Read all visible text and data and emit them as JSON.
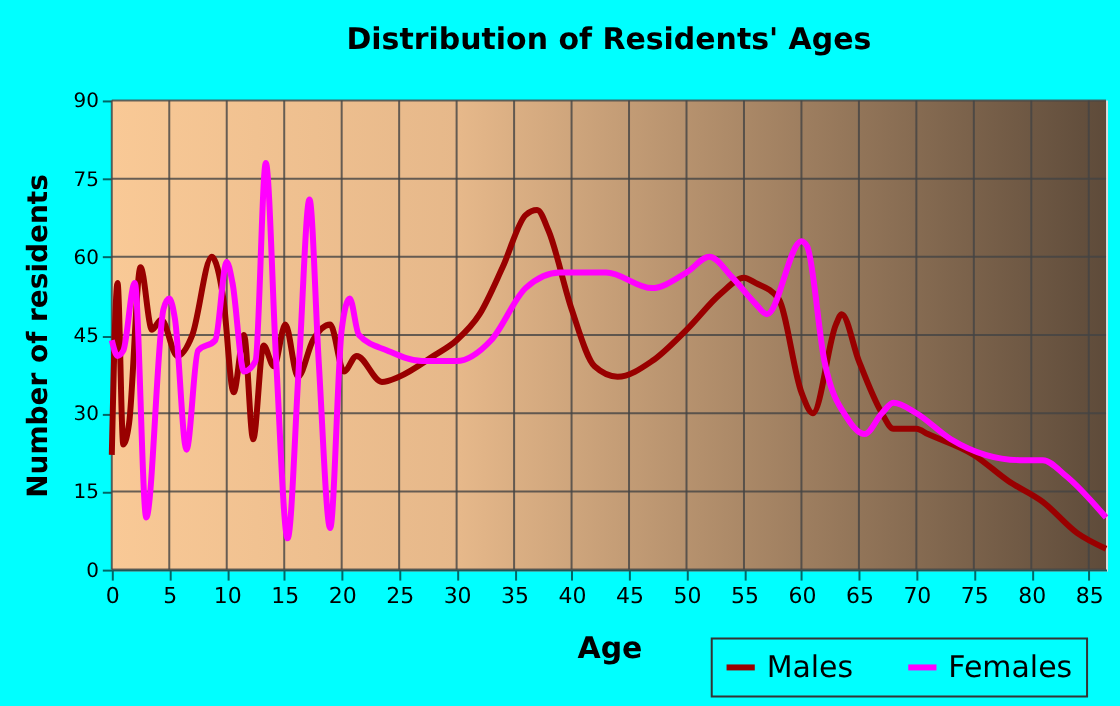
{
  "chart_data": {
    "type": "line",
    "title": "Distribution of Residents' Ages",
    "xlabel": "Age",
    "ylabel": "Number of residents",
    "xlim": [
      0,
      86.5
    ],
    "xticks": [
      0,
      5,
      10,
      15,
      20,
      25,
      30,
      35,
      40,
      45,
      50,
      55,
      60,
      65,
      70,
      75,
      80,
      85
    ],
    "ylim": [
      0,
      90
    ],
    "yticks": [
      0,
      15,
      30,
      45,
      60,
      75,
      90
    ],
    "grid": true,
    "legend": "bottom right",
    "marker": "none",
    "line_style": "solid",
    "series": [
      {
        "name": "Males",
        "color": "#990000",
        "x": [
          0,
          0.5,
          1,
          1.5,
          2.5,
          3.5,
          4.3,
          5.7,
          7,
          8.7,
          9.7,
          10.6,
          11.5,
          12.3,
          13.2,
          14.1,
          15.1,
          16.2,
          17.5,
          19,
          20.2,
          21.3,
          23.5,
          25,
          28,
          30,
          32,
          34,
          36,
          37,
          38,
          40,
          42,
          44,
          47,
          50,
          53,
          55,
          56,
          58,
          60,
          61,
          63,
          63.5,
          65,
          67,
          68,
          70,
          71,
          75,
          78,
          81,
          84,
          86.5
        ],
        "values": [
          22,
          55,
          24,
          28,
          58,
          46,
          48,
          41,
          45,
          60,
          52,
          34,
          45,
          25,
          43,
          39,
          47,
          37,
          44,
          47,
          38,
          41,
          36,
          37,
          41,
          44,
          49,
          58,
          68,
          69,
          65,
          50,
          39,
          37,
          40,
          46,
          53,
          56,
          55,
          52,
          34,
          30,
          47,
          49,
          40,
          30,
          27,
          27,
          26,
          22,
          17,
          13,
          7,
          4
        ]
      },
      {
        "name": "Females",
        "color": "#ff00ff",
        "x": [
          0,
          0.5,
          1,
          2,
          3,
          4.5,
          5,
          5.5,
          6.5,
          7.5,
          9,
          10,
          10.5,
          11.5,
          12.5,
          13.4,
          14.3,
          15.3,
          16.3,
          17.2,
          18,
          19,
          20,
          20.7,
          21.5,
          24,
          27,
          30,
          33,
          36,
          39,
          43,
          47,
          50,
          52,
          54,
          56,
          57,
          60,
          60.5,
          62,
          64,
          65.5,
          67,
          68,
          70,
          73,
          76,
          79,
          81,
          83,
          86.5
        ],
        "values": [
          44,
          41,
          42,
          55,
          10,
          50,
          52,
          48,
          23,
          42,
          44,
          59,
          55,
          38,
          40,
          78,
          40,
          6,
          40,
          71,
          40,
          8,
          46,
          52,
          45,
          42,
          40,
          40,
          44,
          54,
          57,
          57,
          54,
          57,
          60,
          56,
          51,
          49,
          63,
          62,
          40,
          29,
          26,
          30,
          32,
          30,
          25,
          22,
          21,
          21,
          18,
          10
        ]
      }
    ]
  }
}
